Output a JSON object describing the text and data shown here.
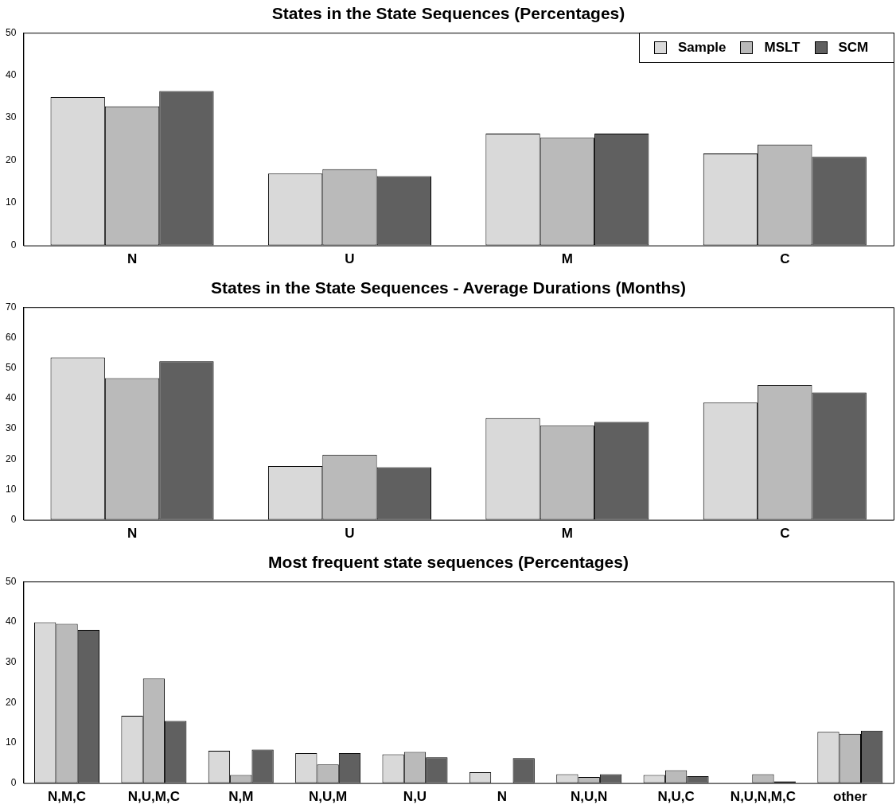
{
  "chart_data": [
    {
      "type": "bar",
      "title": "States in the State Sequences (Percentages)",
      "categories": [
        "N",
        "U",
        "M",
        "C"
      ],
      "series": [
        {
          "name": "Sample",
          "color": "#d9d9d9",
          "values": [
            34.9,
            16.9,
            26.3,
            21.6
          ]
        },
        {
          "name": "MSLT",
          "color": "#bababa",
          "values": [
            32.7,
            17.9,
            25.3,
            23.7
          ]
        },
        {
          "name": "SCM",
          "color": "#606060",
          "values": [
            36.3,
            16.3,
            26.3,
            20.8
          ]
        }
      ],
      "ylim": [
        0,
        50
      ],
      "yticks": [
        0,
        10,
        20,
        30,
        40,
        50
      ],
      "grid": false,
      "legend": "top right"
    },
    {
      "type": "bar",
      "title": "States in the State Sequences - Average Durations (Months)",
      "categories": [
        "N",
        "U",
        "M",
        "C"
      ],
      "series": [
        {
          "color": "#d9d9d9",
          "values": [
            53.4,
            17.7,
            33.5,
            38.6
          ]
        },
        {
          "color": "#bababa",
          "values": [
            46.6,
            21.4,
            31.0,
            44.4
          ]
        },
        {
          "color": "#606060",
          "values": [
            52.2,
            17.3,
            32.2,
            41.9
          ]
        }
      ],
      "ylim": [
        0,
        70
      ],
      "yticks": [
        0,
        10,
        20,
        30,
        40,
        50,
        60,
        70
      ],
      "grid": false
    },
    {
      "type": "bar",
      "title": "Most frequent state sequences (Percentages)",
      "categories": [
        "N,M,C",
        "N,U,M,C",
        "N,M",
        "N,U,M",
        "N,U",
        "N",
        "N,U,N",
        "N,U,C",
        "N,U,N,M,C",
        "other"
      ],
      "series": [
        {
          "color": "#d9d9d9",
          "values": [
            39.9,
            16.7,
            8.0,
            7.4,
            7.1,
            2.7,
            2.2,
            2.0,
            0,
            12.7
          ]
        },
        {
          "color": "#bababa",
          "values": [
            39.5,
            25.9,
            2.0,
            4.6,
            7.7,
            0,
            1.5,
            3.2,
            2.2,
            12.2
          ]
        },
        {
          "color": "#606060",
          "values": [
            38.0,
            15.4,
            8.3,
            7.4,
            6.4,
            6.2,
            2.2,
            1.7,
            0.4,
            13.0
          ]
        }
      ],
      "ylim": [
        0,
        50
      ],
      "yticks": [
        0,
        10,
        20,
        30,
        40,
        50
      ],
      "grid": false
    }
  ]
}
